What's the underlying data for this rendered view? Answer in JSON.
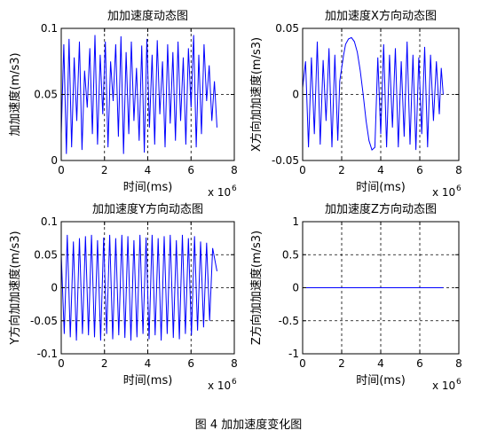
{
  "figure": {
    "caption": "图 4  加加速度变化图"
  },
  "chart_data": [
    {
      "type": "line",
      "title": "加加速度动态图",
      "xlabel": "时间(ms)",
      "ylabel": "加加速度(m/s3)",
      "x_multiplier": "x 10",
      "x_multiplier_exp": "6",
      "xlim": [
        0,
        8
      ],
      "ylim": [
        0,
        0.1
      ],
      "xticks": [
        "0",
        "2",
        "4",
        "6",
        "8"
      ],
      "yticks": [
        "0",
        "0.05",
        "0.1"
      ],
      "grid": true,
      "line_color": "#0000ff",
      "series": [
        {
          "x": [
            0.0,
            0.12,
            0.24,
            0.36,
            0.48,
            0.6,
            0.72,
            0.84,
            0.96,
            1.08,
            1.2,
            1.32,
            1.44,
            1.56,
            1.68,
            1.8,
            1.92,
            2.04,
            2.16,
            2.28,
            2.4,
            2.52,
            2.64,
            2.76,
            2.88,
            3.0,
            3.12,
            3.24,
            3.36,
            3.48,
            3.6,
            3.72,
            3.84,
            3.96,
            4.08,
            4.2,
            4.32,
            4.44,
            4.56,
            4.68,
            4.8,
            4.92,
            5.04,
            5.16,
            5.28,
            5.4,
            5.52,
            5.64,
            5.76,
            5.88,
            6.0,
            6.12,
            6.24,
            6.36,
            6.48,
            6.6,
            6.72,
            6.84,
            6.96,
            7.08,
            7.2
          ],
          "y": [
            0.02,
            0.088,
            0.005,
            0.092,
            0.01,
            0.078,
            0.03,
            0.09,
            0.008,
            0.068,
            0.04,
            0.085,
            0.02,
            0.095,
            0.012,
            0.08,
            0.035,
            0.09,
            0.01,
            0.075,
            0.045,
            0.088,
            0.018,
            0.094,
            0.005,
            0.082,
            0.02,
            0.09,
            0.03,
            0.07,
            0.015,
            0.087,
            0.006,
            0.092,
            0.025,
            0.08,
            0.012,
            0.091,
            0.035,
            0.075,
            0.01,
            0.088,
            0.028,
            0.082,
            0.015,
            0.09,
            0.03,
            0.078,
            0.012,
            0.085,
            0.04,
            0.095,
            0.01,
            0.08,
            0.02,
            0.088,
            0.045,
            0.072,
            0.03,
            0.06,
            0.025
          ]
        }
      ]
    },
    {
      "type": "line",
      "title": "加加速度X方向动态图",
      "xlabel": "时间(ms)",
      "ylabel": "X方向加加速度(m/s3)",
      "x_multiplier": "x 10",
      "x_multiplier_exp": "6",
      "xlim": [
        0,
        8
      ],
      "ylim": [
        -0.05,
        0.05
      ],
      "xticks": [
        "0",
        "2",
        "4",
        "6",
        "8"
      ],
      "yticks": [
        "-0.05",
        "0",
        "0.05"
      ],
      "grid": true,
      "line_color": "#0000ff",
      "series": [
        {
          "x": [
            0.0,
            0.15,
            0.3,
            0.45,
            0.6,
            0.75,
            0.9,
            1.05,
            1.2,
            1.35,
            1.5,
            1.65,
            1.8,
            1.9,
            2.0,
            2.1,
            2.2,
            2.35,
            2.5,
            2.65,
            2.8,
            2.95,
            3.1,
            3.25,
            3.4,
            3.55,
            3.7,
            3.85,
            4.0,
            4.15,
            4.3,
            4.45,
            4.6,
            4.75,
            4.9,
            5.05,
            5.2,
            5.35,
            5.5,
            5.65,
            5.8,
            5.95,
            6.1,
            6.25,
            6.4,
            6.55,
            6.7,
            6.85,
            7.0,
            7.1,
            7.2
          ],
          "y": [
            0.005,
            0.025,
            -0.04,
            0.028,
            -0.03,
            0.04,
            -0.038,
            0.026,
            -0.02,
            0.035,
            -0.04,
            0.03,
            -0.035,
            0.01,
            0.02,
            0.03,
            0.038,
            0.042,
            0.043,
            0.04,
            0.032,
            0.018,
            0.0,
            -0.02,
            -0.035,
            -0.042,
            -0.04,
            0.028,
            -0.03,
            0.038,
            -0.04,
            0.03,
            -0.025,
            0.035,
            -0.04,
            0.025,
            -0.032,
            0.04,
            -0.038,
            0.03,
            -0.042,
            0.028,
            -0.03,
            0.036,
            -0.04,
            0.03,
            -0.02,
            0.025,
            -0.015,
            0.02,
            0.0
          ]
        }
      ]
    },
    {
      "type": "line",
      "title": "加加速度Y方向动态图",
      "xlabel": "时间(ms)",
      "ylabel": "Y方向加加速度(m/s3)",
      "x_multiplier": "x 10",
      "x_multiplier_exp": "6",
      "xlim": [
        0,
        8
      ],
      "ylim": [
        -0.1,
        0.1
      ],
      "xticks": [
        "0",
        "2",
        "4",
        "6",
        "8"
      ],
      "yticks": [
        "-0.1",
        "-0.05",
        "0",
        "0.05",
        "0.1"
      ],
      "grid": true,
      "line_color": "#0000ff",
      "series": [
        {
          "x": [
            0.0,
            0.14,
            0.28,
            0.42,
            0.56,
            0.7,
            0.84,
            0.98,
            1.12,
            1.26,
            1.4,
            1.54,
            1.68,
            1.82,
            1.96,
            2.1,
            2.24,
            2.38,
            2.52,
            2.66,
            2.8,
            2.94,
            3.08,
            3.22,
            3.36,
            3.5,
            3.64,
            3.78,
            3.92,
            4.06,
            4.2,
            4.34,
            4.48,
            4.62,
            4.76,
            4.9,
            5.04,
            5.18,
            5.32,
            5.46,
            5.6,
            5.74,
            5.88,
            6.02,
            6.16,
            6.3,
            6.44,
            6.58,
            6.72,
            6.86,
            7.0,
            7.2
          ],
          "y": [
            0.05,
            -0.07,
            0.08,
            -0.075,
            0.07,
            -0.08,
            0.075,
            -0.07,
            0.078,
            -0.072,
            0.08,
            -0.075,
            0.072,
            -0.08,
            0.076,
            -0.07,
            0.08,
            -0.078,
            0.075,
            -0.072,
            0.08,
            -0.076,
            0.078,
            -0.08,
            0.072,
            -0.075,
            0.08,
            -0.07,
            0.076,
            -0.078,
            0.08,
            -0.072,
            0.075,
            -0.08,
            0.078,
            -0.07,
            0.08,
            -0.076,
            0.072,
            -0.078,
            0.08,
            -0.07,
            0.075,
            -0.072,
            0.078,
            -0.065,
            0.07,
            -0.06,
            0.068,
            -0.05,
            0.06,
            0.025
          ]
        }
      ]
    },
    {
      "type": "line",
      "title": "加加速度Z方向动态图",
      "xlabel": "时间(ms)",
      "ylabel": "Z方向加加速度(m/s3)",
      "x_multiplier": "x 10",
      "x_multiplier_exp": "6",
      "xlim": [
        0,
        8
      ],
      "ylim": [
        -1,
        1
      ],
      "xticks": [
        "0",
        "2",
        "4",
        "6",
        "8"
      ],
      "yticks": [
        "-1",
        "-0.5",
        "0",
        "0.5",
        "1"
      ],
      "grid": true,
      "line_color": "#0000ff",
      "series": [
        {
          "x": [
            0.0,
            7.2
          ],
          "y": [
            0.0,
            0.0
          ]
        }
      ]
    }
  ]
}
